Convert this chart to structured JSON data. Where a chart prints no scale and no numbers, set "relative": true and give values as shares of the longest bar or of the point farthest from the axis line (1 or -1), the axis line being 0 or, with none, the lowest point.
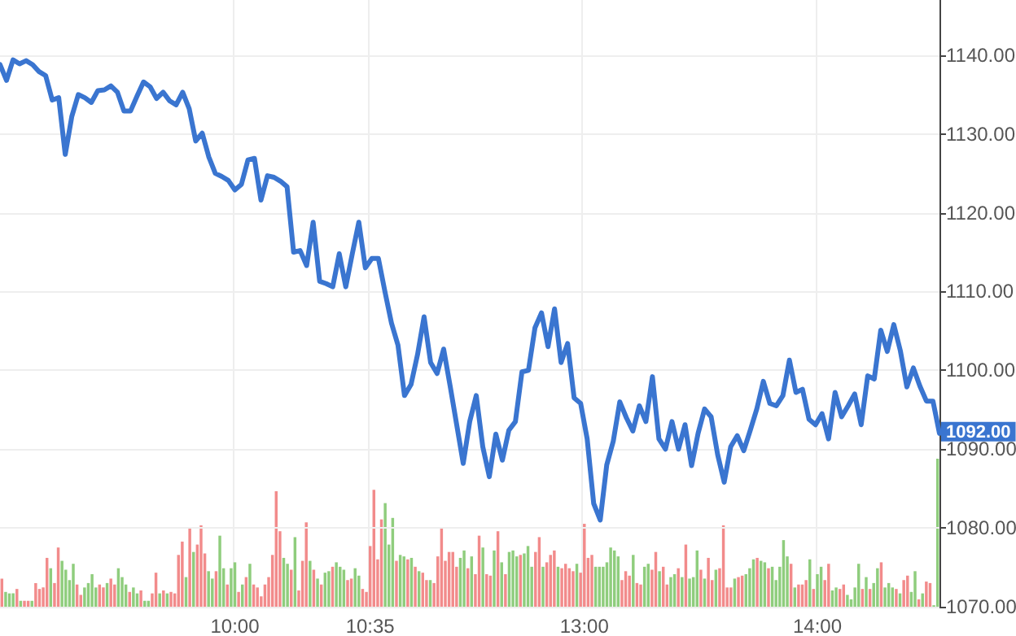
{
  "chart_data": [
    {
      "type": "line",
      "color": "#3a75d0",
      "grid": "y",
      "tick_labels": "y",
      "ylim": [
        1070,
        1147
      ],
      "yticks": [
        {
          "value": 1070,
          "label": "1070.00"
        },
        {
          "value": 1080,
          "label": "1080.00"
        },
        {
          "value": 1090,
          "label": "1090.00"
        },
        {
          "value": 1100,
          "label": "1100.00"
        },
        {
          "value": 1110,
          "label": "1110.00"
        },
        {
          "value": 1120,
          "label": "1120.00"
        },
        {
          "value": 1130,
          "label": "1130.00"
        },
        {
          "value": 1140,
          "label": "1140.00"
        }
      ],
      "annotations": [
        "1092.00"
      ],
      "categories": [
        null,
        null,
        null,
        null,
        null,
        null,
        null,
        null,
        null,
        null,
        null,
        null,
        null,
        null,
        null,
        null,
        null,
        null,
        null,
        null,
        null,
        null,
        null,
        null,
        null,
        null,
        null,
        null,
        null,
        null,
        null,
        null,
        null,
        null,
        null,
        null,
        null,
        null,
        null,
        null,
        null,
        null,
        null,
        null,
        null,
        null,
        null,
        null,
        null,
        null,
        null,
        null,
        null,
        null,
        null,
        null,
        null,
        null,
        null,
        null,
        null,
        null,
        null,
        null,
        null,
        null,
        null,
        null,
        null,
        null,
        null,
        null,
        null,
        null,
        null,
        null,
        null,
        null,
        null,
        null,
        null,
        null,
        null,
        null,
        null,
        null,
        null,
        null,
        null,
        null,
        null,
        null,
        null,
        null,
        null,
        null,
        null,
        null,
        null,
        null,
        null,
        null,
        null,
        null,
        null,
        null,
        null,
        null,
        null,
        null,
        null,
        null,
        null,
        null,
        null,
        null,
        null,
        null,
        null,
        null,
        null,
        null,
        null,
        null,
        null,
        null,
        null,
        null,
        null,
        null,
        null,
        null,
        null,
        null,
        null,
        null,
        null,
        null,
        null,
        null,
        null,
        null,
        null,
        null,
        null
      ],
      "values": [
        1138.8,
        1136.8,
        1139.4,
        1138.9,
        1139.3,
        1138.8,
        1137.9,
        1137.4,
        1134.3,
        1134.6,
        1127.4,
        1132.2,
        1135,
        1134.6,
        1134,
        1135.5,
        1135.6,
        1136.1,
        1135.3,
        1132.9,
        1132.9,
        1134.8,
        1136.6,
        1136,
        1134.5,
        1135.3,
        1134.2,
        1133.7,
        1135.3,
        1133.2,
        1129.1,
        1130.1,
        1127.1,
        1125,
        1124.6,
        1124.1,
        1122.9,
        1123.6,
        1126.7,
        1126.9,
        1121.6,
        1124.7,
        1124.5,
        1124,
        1123.3,
        1115,
        1115.2,
        1113.3,
        1118.8,
        1111.3,
        1111,
        1110.6,
        1114.8,
        1110.6,
        1114.8,
        1118.8,
        1113,
        1114.2,
        1114.2,
        1110,
        1106,
        1103.2,
        1096.8,
        1098.2,
        1102,
        1106.8,
        1101,
        1099.6,
        1102.7,
        1098,
        1093.1,
        1088.2,
        1093.5,
        1096.8,
        1090.3,
        1086.5,
        1091.9,
        1088.6,
        1092.4,
        1093.5,
        1099.8,
        1100,
        1105.4,
        1107.3,
        1103,
        1107.8,
        1101,
        1103.4,
        1096.5,
        1095.8,
        1091.3,
        1083.1,
        1081,
        1088,
        1091,
        1096,
        1094,
        1092.3,
        1095.5,
        1093.5,
        1099.2,
        1091.3,
        1090,
        1093.5,
        1090,
        1093.1,
        1087.9,
        1092,
        1095.1,
        1094.1,
        1089.3,
        1085.8,
        1090.3,
        1091.7,
        1089.8,
        1092.4,
        1095.1,
        1098.6,
        1095.8,
        1095.5,
        1096.8,
        1101.3,
        1097.2,
        1097.6,
        1093.8,
        1093.1,
        1094.5,
        1091.3,
        1097.2,
        1094.1,
        1095.5,
        1097,
        1093.1,
        1099.3,
        1098.9,
        1105.1,
        1102.4,
        1105.8,
        1102.5,
        1097.9,
        1100.3,
        1098,
        1096.1,
        1096.1,
        1092
      ]
    },
    {
      "type": "bar",
      "relative": true,
      "grid": "x",
      "categories": [
        null,
        null,
        null,
        null,
        null,
        null,
        null,
        null,
        null,
        null,
        null,
        null,
        null,
        null,
        null,
        null,
        null,
        null,
        null,
        null,
        null,
        null,
        null,
        null,
        null,
        null,
        null,
        null,
        null,
        null,
        null,
        null,
        null,
        null,
        null,
        null,
        null,
        null,
        null,
        null,
        null,
        null,
        null,
        null,
        null,
        null,
        null,
        null,
        null,
        null,
        null,
        null,
        null,
        null,
        null,
        null,
        null,
        null,
        null,
        null,
        null,
        null,
        "10:00",
        null,
        null,
        null,
        null,
        null,
        null,
        null,
        null,
        null,
        null,
        null,
        null,
        null,
        null,
        null,
        null,
        null,
        null,
        null,
        null,
        null,
        null,
        null,
        null,
        null,
        null,
        null,
        null,
        null,
        null,
        null,
        null,
        null,
        null,
        null,
        "10:35",
        null,
        null,
        null,
        null,
        null,
        null,
        null,
        null,
        null,
        null,
        null,
        null,
        null,
        null,
        null,
        null,
        null,
        null,
        null,
        null,
        null,
        null,
        null,
        null,
        null,
        null,
        null,
        null,
        null,
        null,
        null,
        null,
        null,
        null,
        null,
        null,
        null,
        null,
        null,
        null,
        null,
        null,
        null,
        null,
        null,
        null,
        null,
        null,
        null,
        null,
        null,
        null,
        null,
        null,
        null,
        null,
        "13:00",
        null,
        null,
        null,
        null,
        null,
        null,
        null,
        null,
        null,
        null,
        null,
        null,
        null,
        null,
        null,
        null,
        null,
        null,
        null,
        null,
        null,
        null,
        null,
        null,
        null,
        null,
        null,
        null,
        null,
        null,
        null,
        null,
        null,
        null,
        null,
        null,
        null,
        null,
        null,
        null,
        null,
        null,
        null,
        null,
        null,
        null,
        null,
        null,
        null,
        null,
        null,
        null,
        null,
        null,
        null,
        null,
        null,
        null,
        null,
        null,
        null,
        "14:00",
        null,
        null,
        null,
        null,
        null,
        null,
        null,
        null,
        null,
        null,
        null,
        null,
        null,
        null,
        null,
        null,
        null,
        null,
        null,
        null,
        null,
        null,
        null,
        null,
        null,
        null,
        null,
        null,
        null,
        null,
        null,
        null
      ],
      "values": [
        0.19,
        0.1,
        0.09,
        0.09,
        0.12,
        0.04,
        0.04,
        0.04,
        0.04,
        0.16,
        0.12,
        0.13,
        0.33,
        0.26,
        0.16,
        0.4,
        0.31,
        0.25,
        0.18,
        0.29,
        0.15,
        0.08,
        0.13,
        0.16,
        0.22,
        0.13,
        0.15,
        0.13,
        0.16,
        0.19,
        0.15,
        0.26,
        0.2,
        0.15,
        0.1,
        0.13,
        0.09,
        0.11,
        0.04,
        0.04,
        0.09,
        0.23,
        0.09,
        0.11,
        0.09,
        0.1,
        0.09,
        0.35,
        0.44,
        0.2,
        0.53,
        0.37,
        0.42,
        0.55,
        0.36,
        0.24,
        0.19,
        0.24,
        0.48,
        0.26,
        0.15,
        0.26,
        0.3,
        0.1,
        0.15,
        0.2,
        0.29,
        0.15,
        0.13,
        0.07,
        0.15,
        0.2,
        0.35,
        0.78,
        0.51,
        0.33,
        0.29,
        0.25,
        0.47,
        0.11,
        0.31,
        0.57,
        0.31,
        0.25,
        0.19,
        0.15,
        0.23,
        0.24,
        0.27,
        0.3,
        0.27,
        0.25,
        0.18,
        0.19,
        0.26,
        0.21,
        0.12,
        0.1,
        0.41,
        0.79,
        0.32,
        0.59,
        0.7,
        0.42,
        0.6,
        0.31,
        0.35,
        0.34,
        0.32,
        0.33,
        0.27,
        0.24,
        0.23,
        0.18,
        0.18,
        0.16,
        0.34,
        0.53,
        0.31,
        0.37,
        0.37,
        0.27,
        0.33,
        0.38,
        0.26,
        0.34,
        0.22,
        0.48,
        0.4,
        0.22,
        0.21,
        0.38,
        0.51,
        0.3,
        0.22,
        0.37,
        0.38,
        0.34,
        0.35,
        0.36,
        0.41,
        0.27,
        0.37,
        0.47,
        0.27,
        0.3,
        0.35,
        0.38,
        0.27,
        0.26,
        0.29,
        0.26,
        0.24,
        0.29,
        0.23,
        0.56,
        0.33,
        0.35,
        0.27,
        0.27,
        0.27,
        0.3,
        0.4,
        0.38,
        0.34,
        0.18,
        0.24,
        0.21,
        0.35,
        0.16,
        0.15,
        0.27,
        0.29,
        0.25,
        0.37,
        0.24,
        0.27,
        0.15,
        0.2,
        0.22,
        0.26,
        0.2,
        0.42,
        0.19,
        0.2,
        0.38,
        0.25,
        0.19,
        0.33,
        0.18,
        0.25,
        0.26,
        0.55,
        0.13,
        0.13,
        0.19,
        0.2,
        0.21,
        0.22,
        0.26,
        0.32,
        0.33,
        0.31,
        0.3,
        0.26,
        0.27,
        0.18,
        0.27,
        0.45,
        0.34,
        0.29,
        0.13,
        0.15,
        0.15,
        0.18,
        0.32,
        0.12,
        0.22,
        0.27,
        0.18,
        0.29,
        0.11,
        0.13,
        0.12,
        0.15,
        0.08,
        0.05,
        0.13,
        0.29,
        0.12,
        0.2,
        0.12,
        0.16,
        0.26,
        0.3,
        0.13,
        0.16,
        0.13,
        0.12,
        0.09,
        0.18,
        0.21,
        0.1,
        0.24,
        0.05,
        0.09,
        0.17,
        0.16,
        0.01,
        1
      ],
      "colors": [
        "#f28b8b",
        "#8fcd7d",
        "#8fcd7d",
        "#8fcd7d",
        "#f28b8b",
        "#8fcd7d",
        "#f28b8b",
        "#f28b8b",
        "#8fcd7d",
        "#f28b8b",
        "#f28b8b",
        "#f28b8b",
        "#f28b8b",
        "#8fcd7d",
        "#f28b8b",
        "#f28b8b",
        "#8fcd7d",
        "#8fcd7d",
        "#8fcd7d",
        "#8fcd7d",
        "#f28b8b",
        "#f28b8b",
        "#8fcd7d",
        "#8fcd7d",
        "#8fcd7d",
        "#8fcd7d",
        "#f28b8b",
        "#f28b8b",
        "#8fcd7d",
        "#f28b8b",
        "#f28b8b",
        "#8fcd7d",
        "#8fcd7d",
        "#8fcd7d",
        "#f28b8b",
        "#8fcd7d",
        "#8fcd7d",
        "#f28b8b",
        "#8fcd7d",
        "#8fcd7d",
        "#f28b8b",
        "#f28b8b",
        "#8fcd7d",
        "#f28b8b",
        "#8fcd7d",
        "#f28b8b",
        "#f28b8b",
        "#f28b8b",
        "#f28b8b",
        "#8fcd7d",
        "#f28b8b",
        "#8fcd7d",
        "#f28b8b",
        "#f28b8b",
        "#f28b8b",
        "#8fcd7d",
        "#8fcd7d",
        "#f28b8b",
        "#8fcd7d",
        "#8fcd7d",
        "#f28b8b",
        "#8fcd7d",
        "#8fcd7d",
        "#f28b8b",
        "#8fcd7d",
        "#f28b8b",
        "#8fcd7d",
        "#f28b8b",
        "#f28b8b",
        "#f28b8b",
        "#f28b8b",
        "#f28b8b",
        "#f28b8b",
        "#f28b8b",
        "#f28b8b",
        "#8fcd7d",
        "#8fcd7d",
        "#f28b8b",
        "#8fcd7d",
        "#f28b8b",
        "#f28b8b",
        "#f28b8b",
        "#8fcd7d",
        "#f28b8b",
        "#8fcd7d",
        "#f28b8b",
        "#8fcd7d",
        "#8fcd7d",
        "#f28b8b",
        "#8fcd7d",
        "#8fcd7d",
        "#8fcd7d",
        "#f28b8b",
        "#f28b8b",
        "#8fcd7d",
        "#8fcd7d",
        "#f28b8b",
        "#f28b8b",
        "#f28b8b",
        "#f28b8b",
        "#f28b8b",
        "#f28b8b",
        "#8fcd7d",
        "#8fcd7d",
        "#8fcd7d",
        "#f28b8b",
        "#8fcd7d",
        "#8fcd7d",
        "#f28b8b",
        "#8fcd7d",
        "#f28b8b",
        "#8fcd7d",
        "#f28b8b",
        "#f28b8b",
        "#8fcd7d",
        "#f28b8b",
        "#f28b8b",
        "#f28b8b",
        "#f28b8b",
        "#f28b8b",
        "#f28b8b",
        "#f28b8b",
        "#8fcd7d",
        "#8fcd7d",
        "#f28b8b",
        "#8fcd7d",
        "#f28b8b",
        "#f28b8b",
        "#8fcd7d",
        "#f28b8b",
        "#f28b8b",
        "#8fcd7d",
        "#f28b8b",
        "#8fcd7d",
        "#f28b8b",
        "#8fcd7d",
        "#8fcd7d",
        "#8fcd7d",
        "#f28b8b",
        "#8fcd7d",
        "#8fcd7d",
        "#8fcd7d",
        "#f28b8b",
        "#f28b8b",
        "#8fcd7d",
        "#f28b8b",
        "#f28b8b",
        "#f28b8b",
        "#8fcd7d",
        "#f28b8b",
        "#f28b8b",
        "#f28b8b",
        "#f28b8b",
        "#8fcd7d",
        "#f28b8b",
        "#f28b8b",
        "#f28b8b",
        "#f28b8b",
        "#8fcd7d",
        "#8fcd7d",
        "#8fcd7d",
        "#8fcd7d",
        "#8fcd7d",
        "#8fcd7d",
        "#8fcd7d",
        "#f28b8b",
        "#f28b8b",
        "#f28b8b",
        "#8fcd7d",
        "#f28b8b",
        "#f28b8b",
        "#8fcd7d",
        "#8fcd7d",
        "#f28b8b",
        "#f28b8b",
        "#8fcd7d",
        "#f28b8b",
        "#f28b8b",
        "#8fcd7d",
        "#8fcd7d",
        "#f28b8b",
        "#8fcd7d",
        "#f28b8b",
        "#8fcd7d",
        "#8fcd7d",
        "#8fcd7d",
        "#f28b8b",
        "#8fcd7d",
        "#f28b8b",
        "#f28b8b",
        "#8fcd7d",
        "#f28b8b",
        "#f28b8b",
        "#f28b8b",
        "#f28b8b",
        "#8fcd7d",
        "#f28b8b",
        "#f28b8b",
        "#8fcd7d",
        "#8fcd7d",
        "#8fcd7d",
        "#f28b8b",
        "#8fcd7d",
        "#8fcd7d",
        "#f28b8b",
        "#8fcd7d",
        "#8fcd7d",
        "#8fcd7d",
        "#8fcd7d",
        "#8fcd7d",
        "#f28b8b",
        "#8fcd7d",
        "#f28b8b",
        "#f28b8b",
        "#f28b8b",
        "#8fcd7d",
        "#f28b8b",
        "#8fcd7d",
        "#8fcd7d",
        "#f28b8b",
        "#f28b8b",
        "#8fcd7d",
        "#8fcd7d",
        "#f28b8b",
        "#f28b8b",
        "#8fcd7d",
        "#8fcd7d",
        "#8fcd7d",
        "#8fcd7d",
        "#f28b8b",
        "#8fcd7d",
        "#f28b8b",
        "#8fcd7d",
        "#8fcd7d",
        "#f28b8b",
        "#8fcd7d",
        "#8fcd7d",
        "#8fcd7d",
        "#f28b8b",
        "#8fcd7d",
        "#f28b8b",
        "#f28b8b",
        "#8fcd7d",
        "#8fcd7d",
        "#f28b8b",
        "#8fcd7d",
        "#f28b8b",
        "#f28b8b",
        "#8fcd7d",
        "#8fcd7d"
      ]
    }
  ]
}
